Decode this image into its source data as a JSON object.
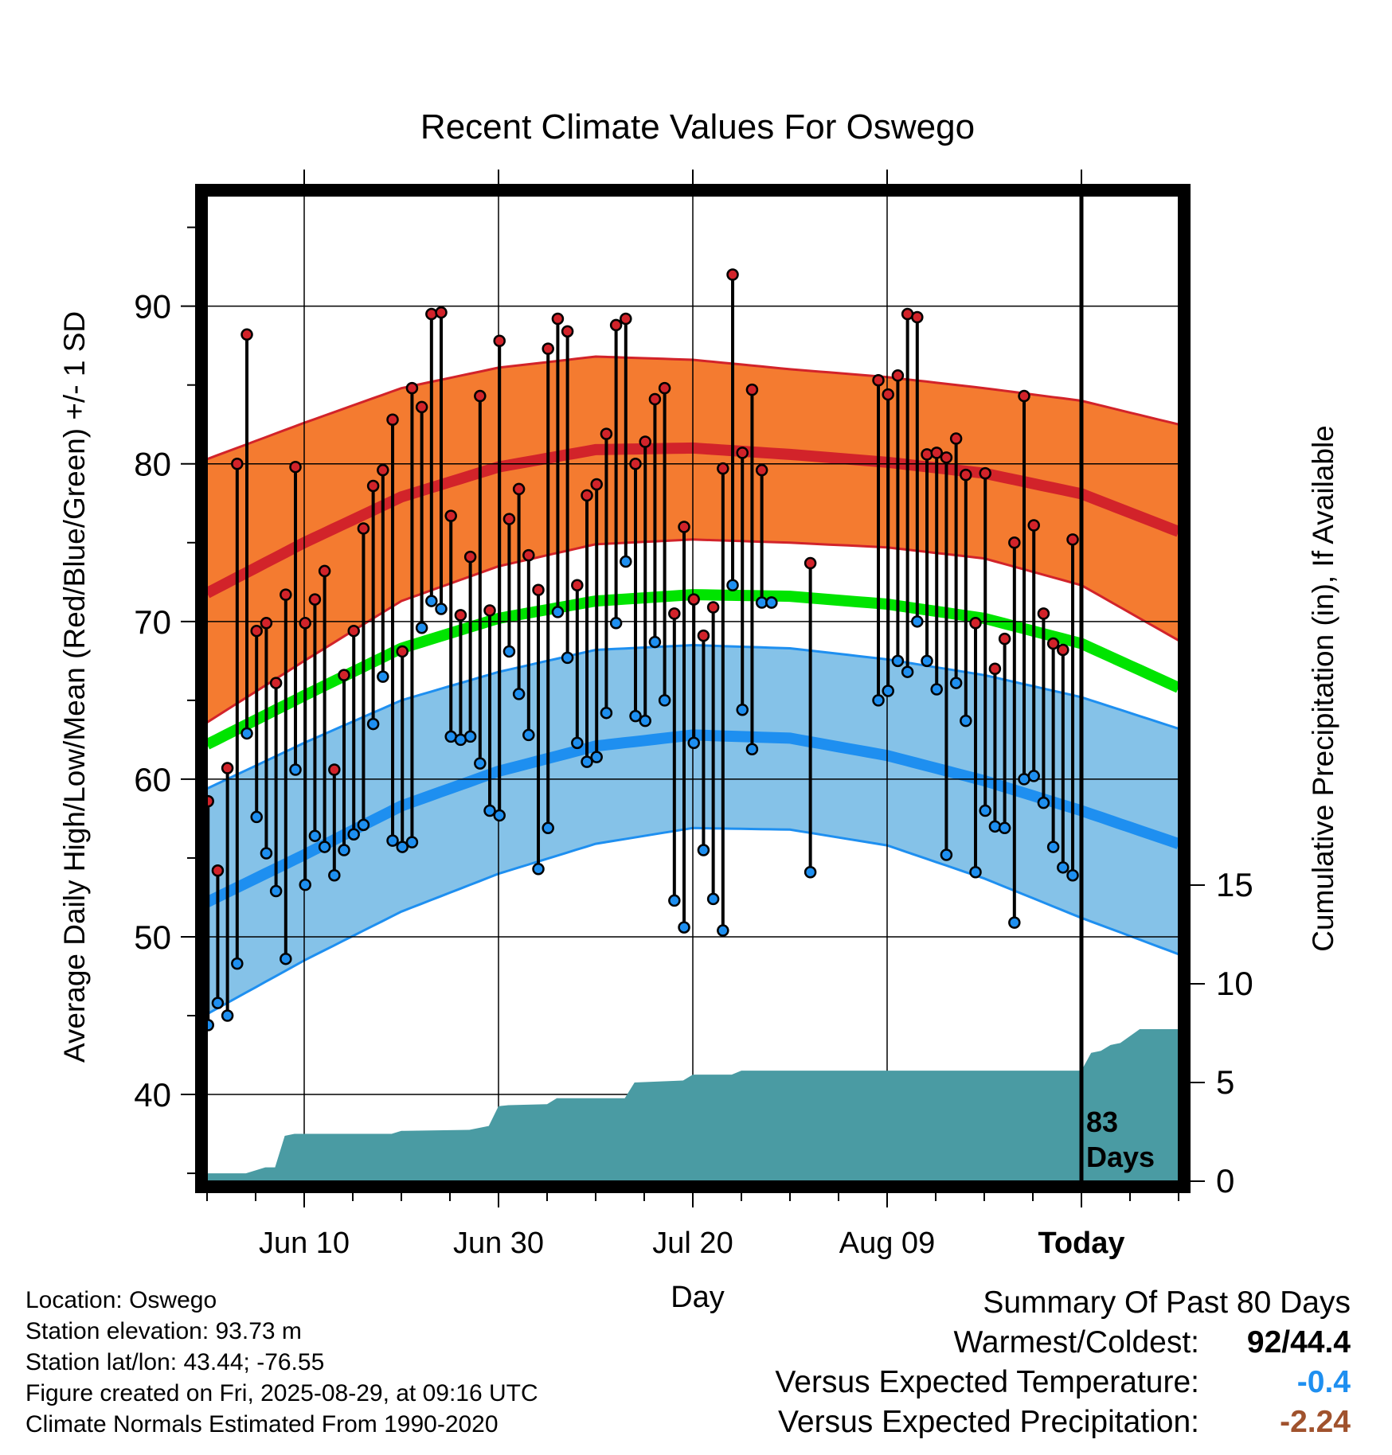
{
  "title": "Recent Climate Values For Oswego",
  "x_axis_label": "Day",
  "y_axis_label_left": "Average Daily High/Low/Mean (Red/Blue/Green) +/- 1 SD",
  "y_axis_label_right": "Cumulative Precipitation (in), If Available",
  "today_marker_label": [
    "83",
    "Days"
  ],
  "info_panel": {
    "location": "Location: Oswego",
    "elevation": "Station elevation: 93.73 m",
    "latlon": "Station lat/lon: 43.44; -76.55",
    "created": "Figure created on Fri, 2025-08-29, at 09:16 UTC",
    "normals": "Climate Normals Estimated From 1990-2020"
  },
  "summary": {
    "heading": "Summary Of Past 80 Days",
    "warm_cold_label": "Warmest/Coldest:",
    "warm_cold_value": "92/44.4",
    "temp_label": "Versus Expected Temperature:",
    "temp_value": "-0.4",
    "precip_label": "Versus Expected Precipitation:",
    "precip_value": "-2.24"
  },
  "colors": {
    "high_band": "#f47b30",
    "high_line": "#d2232a",
    "low_band": "#85c2e8",
    "low_line": "#1e8ff0",
    "mean_line": "#00e400",
    "precip": "#4a9ba3",
    "high_dot": "#d2232a",
    "low_dot": "#1e8ff0",
    "temp_value": "#1e8ff0",
    "precip_value": "#a0522d"
  },
  "chart_data": {
    "type": "line",
    "x_ticks": [
      {
        "day": 10,
        "label": "Jun 10"
      },
      {
        "day": 30,
        "label": "Jun 30"
      },
      {
        "day": 50,
        "label": "Jul 20"
      },
      {
        "day": 70,
        "label": "Aug 09"
      },
      {
        "day": 90,
        "label": "Today"
      }
    ],
    "xlim": [
      0,
      100
    ],
    "y_left_ticks": [
      40,
      50,
      60,
      70,
      80,
      90
    ],
    "ylim_left": [
      34.5,
      97
    ],
    "y_right_ticks": [
      0,
      5,
      10,
      15
    ],
    "y_right_range": [
      0,
      15
    ],
    "today_day": 90,
    "normals": {
      "day": [
        0,
        10,
        20,
        30,
        40,
        50,
        60,
        70,
        80,
        90,
        100
      ],
      "high_mean": [
        71.8,
        75.0,
        77.9,
        79.8,
        80.9,
        81.0,
        80.6,
        80.1,
        79.4,
        78.1,
        75.7
      ],
      "high_plus_sd": [
        80.3,
        82.6,
        84.8,
        86.1,
        86.8,
        86.6,
        86.0,
        85.5,
        84.8,
        84.0,
        82.5
      ],
      "high_minus_sd": [
        63.6,
        67.5,
        71.3,
        73.5,
        74.9,
        75.2,
        75.0,
        74.7,
        74.0,
        72.3,
        68.8
      ],
      "mean": [
        62.2,
        65.3,
        68.3,
        70.2,
        71.3,
        71.7,
        71.6,
        71.1,
        70.2,
        68.6,
        65.8
      ],
      "low_mean": [
        52.2,
        55.2,
        58.3,
        60.5,
        62.1,
        62.8,
        62.6,
        61.5,
        59.9,
        58.0,
        55.9
      ],
      "low_plus_sd": [
        59.4,
        62.3,
        65.0,
        66.8,
        68.2,
        68.5,
        68.3,
        67.6,
        66.6,
        65.2,
        63.2
      ],
      "low_minus_sd": [
        45.1,
        48.5,
        51.6,
        54.0,
        55.9,
        56.9,
        56.8,
        55.8,
        53.7,
        51.2,
        48.9
      ]
    },
    "observed": {
      "day": [
        0,
        1,
        2,
        3,
        4,
        5,
        6,
        7,
        8,
        9,
        10,
        11,
        12,
        13,
        14,
        15,
        16,
        17,
        18,
        19,
        20,
        21,
        22,
        23,
        24,
        25,
        26,
        27,
        28,
        29,
        30,
        31,
        32,
        33,
        34,
        35,
        36,
        37,
        38,
        39,
        40,
        41,
        42,
        43,
        44,
        45,
        46,
        47,
        48,
        49,
        50,
        51,
        52,
        53,
        54,
        55,
        56,
        57,
        58,
        62,
        69,
        70,
        71,
        72,
        73,
        74,
        75,
        76,
        77,
        78,
        79,
        80,
        81,
        82,
        83,
        84,
        85,
        86,
        87,
        88,
        89
      ],
      "high": [
        58.6,
        54.2,
        60.7,
        80.0,
        88.2,
        69.4,
        69.9,
        66.1,
        71.7,
        79.8,
        69.9,
        71.4,
        73.2,
        60.6,
        66.6,
        69.4,
        75.9,
        78.6,
        79.6,
        82.8,
        68.1,
        84.8,
        83.6,
        89.5,
        89.6,
        76.7,
        70.4,
        74.1,
        84.3,
        70.7,
        87.8,
        76.5,
        78.4,
        74.2,
        72.0,
        87.3,
        89.2,
        88.4,
        72.3,
        78.0,
        78.7,
        81.9,
        88.8,
        89.2,
        80.0,
        81.4,
        84.1,
        84.8,
        70.5,
        76.0,
        71.4,
        69.1,
        70.9,
        79.7,
        92.0,
        80.7,
        84.7,
        79.6,
        71.2,
        73.7,
        85.3,
        84.4,
        85.6,
        89.5,
        89.3,
        80.6,
        80.7,
        80.4,
        81.6,
        79.3,
        69.9,
        79.4,
        67.0,
        68.9,
        75.0,
        84.3,
        76.1,
        70.5,
        68.6,
        68.2,
        75.2
      ],
      "low": [
        44.4,
        45.8,
        45.0,
        48.3,
        62.9,
        57.6,
        55.3,
        52.9,
        48.6,
        60.6,
        53.3,
        56.4,
        55.7,
        53.9,
        55.5,
        56.5,
        57.1,
        63.5,
        66.5,
        56.1,
        55.7,
        56.0,
        69.6,
        71.3,
        70.8,
        62.7,
        62.5,
        62.7,
        61.0,
        58.0,
        57.7,
        68.1,
        65.4,
        62.8,
        54.3,
        56.9,
        70.6,
        67.7,
        62.3,
        61.1,
        61.4,
        64.2,
        69.9,
        73.8,
        64.0,
        63.7,
        68.7,
        65.0,
        52.3,
        50.6,
        62.3,
        55.5,
        52.4,
        50.4,
        72.3,
        64.4,
        61.9,
        71.2,
        71.2,
        54.1,
        65.0,
        65.6,
        67.5,
        66.8,
        70.0,
        67.5,
        65.7,
        55.2,
        66.1,
        63.7,
        54.1,
        58.0,
        57.0,
        56.9,
        50.9,
        60.0,
        60.2,
        58.5,
        55.7,
        54.4,
        53.9
      ]
    },
    "precip_cumulative": {
      "day": [
        0,
        4,
        5,
        6,
        7,
        8,
        9,
        10,
        19,
        20,
        27,
        29,
        30,
        31,
        35,
        36,
        43,
        44,
        49,
        50,
        54,
        55,
        60,
        90,
        91,
        92,
        93,
        94,
        96,
        100
      ],
      "value": [
        0.4,
        0.4,
        0.55,
        0.7,
        0.7,
        2.3,
        2.4,
        2.4,
        2.4,
        2.55,
        2.6,
        2.8,
        3.8,
        3.85,
        3.9,
        4.2,
        4.2,
        5.0,
        5.1,
        5.4,
        5.4,
        5.6,
        5.6,
        5.6,
        6.5,
        6.6,
        6.9,
        7.0,
        7.7,
        7.7
      ]
    }
  }
}
